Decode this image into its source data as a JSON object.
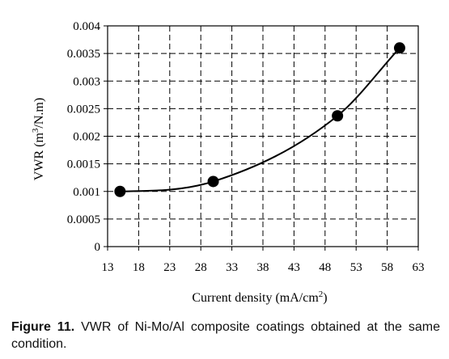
{
  "chart_data": {
    "type": "scatter",
    "title": "",
    "xlabel": "Current density (mA/cm²)",
    "xlabel_parts": {
      "main": "Current density (mA/cm",
      "sup": "2",
      "end": ")"
    },
    "ylabel": "VWR (m³/N.m)",
    "ylabel_parts": {
      "main": "VWR (m",
      "sup": "3",
      "end": "/N.m)"
    },
    "xlim": [
      13,
      63
    ],
    "ylim": [
      0,
      0.004
    ],
    "x_ticks": [
      13,
      18,
      23,
      28,
      33,
      38,
      43,
      48,
      53,
      58,
      63
    ],
    "y_ticks": [
      0,
      0.0005,
      0.001,
      0.0015,
      0.002,
      0.0025,
      0.003,
      0.0035,
      0.004
    ],
    "y_tick_labels": [
      "0",
      "0.0005",
      "0.001",
      "0.0015",
      "0.002",
      "0.0025",
      "0.003",
      "0.0035",
      "0.004"
    ],
    "grid": true,
    "grid_style": "dashed",
    "marker_color": "#000000",
    "line_color": "#000000",
    "series": [
      {
        "points": [
          {
            "x": 15,
            "y": 0.001
          },
          {
            "x": 30,
            "y": 0.00118
          },
          {
            "x": 50,
            "y": 0.00237
          },
          {
            "x": 60,
            "y": 0.0036
          }
        ],
        "fit": "smooth polynomial trendline"
      }
    ]
  },
  "caption": {
    "label": "Figure 11.",
    "text": " VWR of Ni-Mo/Al composite coatings obtained at the same condition."
  }
}
